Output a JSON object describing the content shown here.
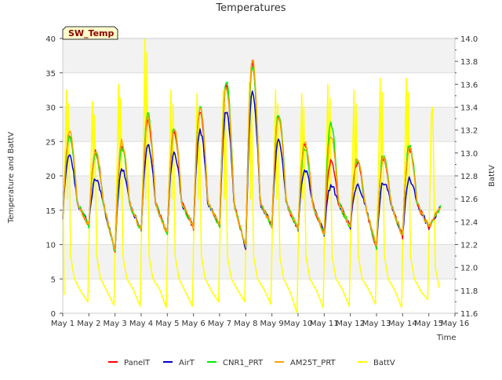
{
  "chart_data": {
    "type": "line",
    "title": "Temperatures",
    "badge": "SW_Temp",
    "xlabel": "Time",
    "ylabel": "Temperature and BattV",
    "y2label": "BattV",
    "xlim": [
      1,
      16
    ],
    "ylim": [
      0,
      40
    ],
    "y2lim": [
      11.6,
      14.0
    ],
    "x_ticks": [
      {
        "value": 1,
        "label": "May 1"
      },
      {
        "value": 2,
        "label": "May 2"
      },
      {
        "value": 3,
        "label": "May 3"
      },
      {
        "value": 4,
        "label": "May 4"
      },
      {
        "value": 5,
        "label": "May 5"
      },
      {
        "value": 6,
        "label": "May 6"
      },
      {
        "value": 7,
        "label": "May 7"
      },
      {
        "value": 8,
        "label": "May 8"
      },
      {
        "value": 9,
        "label": "May 9"
      },
      {
        "value": 10,
        "label": "May 10"
      },
      {
        "value": 11,
        "label": "May 11"
      },
      {
        "value": 12,
        "label": "May 12"
      },
      {
        "value": 13,
        "label": "May 13"
      },
      {
        "value": 14,
        "label": "May 14"
      },
      {
        "value": 15,
        "label": "May 15"
      },
      {
        "value": 16,
        "label": "May 16"
      }
    ],
    "y_ticks": [
      {
        "value": 0,
        "label": "0"
      },
      {
        "value": 5,
        "label": "5"
      },
      {
        "value": 10,
        "label": "10"
      },
      {
        "value": 15,
        "label": "15"
      },
      {
        "value": 20,
        "label": "20"
      },
      {
        "value": 25,
        "label": "25"
      },
      {
        "value": 30,
        "label": "30"
      },
      {
        "value": 35,
        "label": "35"
      },
      {
        "value": 40,
        "label": "40"
      }
    ],
    "y2_ticks": [
      {
        "value": 11.6,
        "label": "11.6"
      },
      {
        "value": 11.8,
        "label": "11.8"
      },
      {
        "value": 12.0,
        "label": "12.0"
      },
      {
        "value": 12.2,
        "label": "12.2"
      },
      {
        "value": 12.4,
        "label": "12.4"
      },
      {
        "value": 12.6,
        "label": "12.6"
      },
      {
        "value": 12.8,
        "label": "12.8"
      },
      {
        "value": 13.0,
        "label": "13.0"
      },
      {
        "value": 13.2,
        "label": "13.2"
      },
      {
        "value": 13.4,
        "label": "13.4"
      },
      {
        "value": 13.6,
        "label": "13.6"
      },
      {
        "value": 13.8,
        "label": "13.8"
      },
      {
        "value": 14.0,
        "label": "14.0"
      }
    ],
    "grid": true,
    "background_bands": true,
    "legend_placement": "bottom",
    "daily": {
      "days": [
        1,
        2,
        3,
        4,
        5,
        6,
        7,
        8,
        9,
        10,
        11,
        12,
        13,
        14,
        15
      ],
      "mins": [
        14.0,
        12.8,
        8.8,
        12.0,
        11.5,
        12.5,
        12.8,
        9.5,
        12.8,
        12.2,
        11.5,
        12.5,
        9.5,
        11.2,
        12.5
      ],
      "end": 14.0,
      "maxes": {
        "PanelT": [
          26.0,
          23.5,
          24.5,
          28.0,
          26.5,
          29.5,
          33.0,
          36.5,
          28.5,
          24.5,
          22.0,
          22.0,
          22.5,
          24.0,
          14.5
        ],
        "AirT": [
          23.0,
          19.5,
          21.0,
          24.5,
          23.5,
          26.5,
          29.5,
          32.5,
          25.0,
          21.0,
          18.5,
          18.5,
          19.0,
          19.5,
          14.0
        ],
        "CNR1_PRT": [
          25.5,
          23.0,
          24.0,
          29.0,
          27.0,
          30.0,
          33.8,
          36.0,
          29.0,
          24.0,
          27.5,
          22.5,
          23.0,
          24.5,
          14.5
        ],
        "AM25T_PRT": [
          26.5,
          23.5,
          25.0,
          28.5,
          27.0,
          30.0,
          33.0,
          37.0,
          28.5,
          25.0,
          26.0,
          22.5,
          22.5,
          24.0,
          14.5
        ]
      },
      "battv_max": [
        13.55,
        13.45,
        13.6,
        14.0,
        13.55,
        13.52,
        13.55,
        13.62,
        13.55,
        13.52,
        13.6,
        13.55,
        13.65,
        13.65,
        12.5
      ],
      "battv_min": [
        11.7,
        11.67,
        11.66,
        11.65,
        11.66,
        11.7,
        11.7,
        11.68,
        11.6,
        11.65,
        11.66,
        11.68,
        11.65,
        11.72,
        11.82
      ]
    },
    "series": [
      {
        "name": "PanelT",
        "color": "#ff0000",
        "axis": "left"
      },
      {
        "name": "AirT",
        "color": "#0000cc",
        "axis": "left"
      },
      {
        "name": "CNR1_PRT",
        "color": "#00ee00",
        "axis": "left"
      },
      {
        "name": "AM25T_PRT",
        "color": "#ffa500",
        "axis": "left"
      },
      {
        "name": "BattV",
        "color": "#ffff00",
        "axis": "right"
      }
    ]
  }
}
